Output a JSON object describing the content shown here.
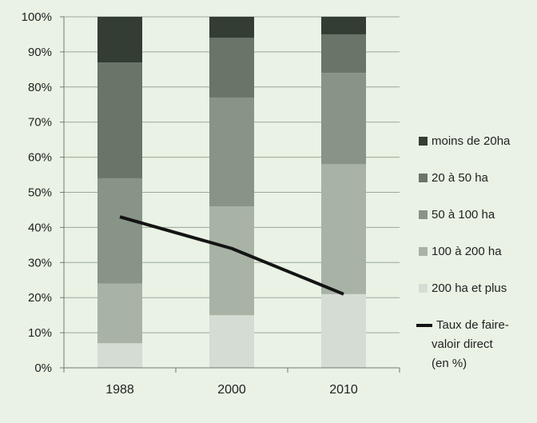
{
  "chart_data": {
    "type": "bar",
    "stacked": true,
    "percent_stacked": true,
    "categories": [
      "1988",
      "2000",
      "2010"
    ],
    "y_ticks": [
      "0%",
      "10%",
      "20%",
      "30%",
      "40%",
      "50%",
      "60%",
      "70%",
      "80%",
      "90%",
      "100%"
    ],
    "ylim": [
      0,
      100
    ],
    "grid": true,
    "legend_position": "right",
    "series": [
      {
        "name": "200 ha et plus",
        "values": [
          7,
          15,
          21
        ],
        "color": "#d5dcd4"
      },
      {
        "name": "100 à 200 ha",
        "values": [
          17,
          31,
          37
        ],
        "color": "#a8b3a6"
      },
      {
        "name": "50 à 100 ha",
        "values": [
          30,
          31,
          26
        ],
        "color": "#879487"
      },
      {
        "name": "20 à 50 ha",
        "values": [
          33,
          17,
          11
        ],
        "color": "#687568"
      },
      {
        "name": "moins de 20ha",
        "values": [
          13,
          6,
          5
        ],
        "color": "#333d34"
      }
    ],
    "line_series": {
      "name_lines": [
        "Taux de faire-",
        "valoir direct",
        "(en %)"
      ],
      "values": [
        43,
        34,
        21
      ],
      "color": "#141414"
    }
  }
}
